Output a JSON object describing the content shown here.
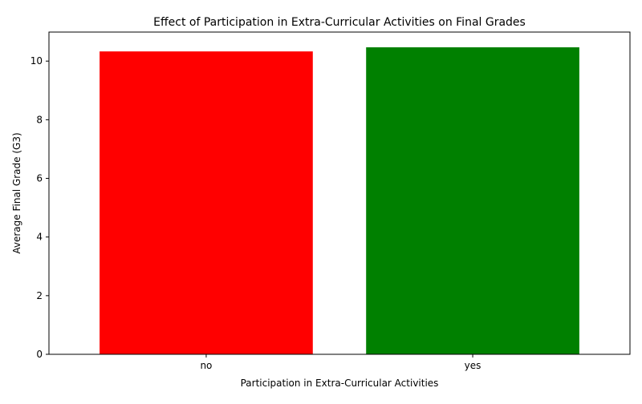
{
  "chart_data": {
    "type": "bar",
    "title": "Effect of Participation in Extra-Curricular Activities on Final Grades",
    "xlabel": "Participation in Extra-Curricular Activities",
    "ylabel": "Average Final Grade (G3)",
    "categories": [
      "no",
      "yes"
    ],
    "values": [
      10.33,
      10.47
    ],
    "colors": [
      "#ff0000",
      "#008000"
    ],
    "ylim": [
      0,
      10.99
    ],
    "yticks": [
      0,
      2,
      4,
      6,
      8,
      10
    ],
    "ytick_labels": [
      "0",
      "2",
      "4",
      "6",
      "8",
      "10"
    ],
    "grid": false,
    "legend": "none"
  }
}
